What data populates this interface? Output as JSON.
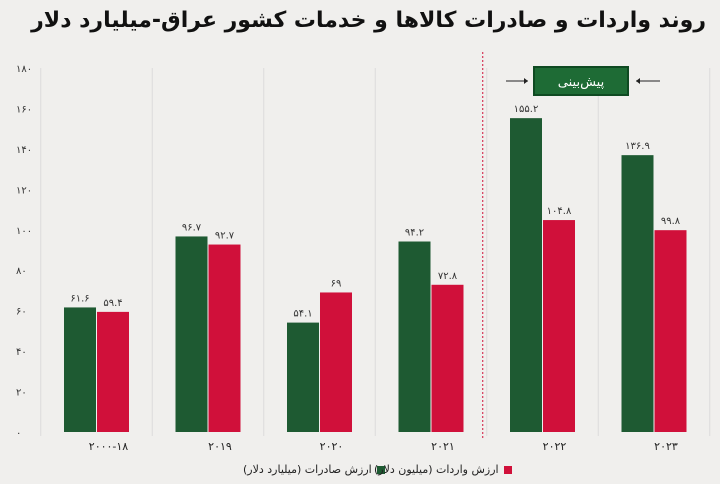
{
  "title": "روند واردات و صادرات کالاها و خدمات کشور عراق-میلیارد دلار",
  "forecast_label": "پیش‌بینی",
  "colors": {
    "exports": "#1e5a32",
    "imports": "#d0103a",
    "forecast_line": "#d0103a",
    "background": "#f0efed"
  },
  "chart_data": {
    "type": "bar",
    "categories": [
      "۲۰۰۰-۱۸",
      "۲۰۱۹",
      "۲۰۲۰",
      "۲۰۲۱",
      "۲۰۲۲",
      "۲۰۲۳"
    ],
    "series": [
      {
        "name": "ارزش صادرات (میلیارد دلار)",
        "values": [
          61.6,
          96.7,
          54.1,
          94.2,
          155.2,
          136.9
        ],
        "labels": [
          "۶۱.۶",
          "۹۶.۷",
          "۵۴.۱",
          "۹۴.۲",
          "۱۵۵.۲",
          "۱۳۶.۹"
        ]
      },
      {
        "name": "ارزش واردات (میلیون دلار)",
        "values": [
          59.4,
          92.7,
          69,
          72.8,
          104.8,
          99.8
        ],
        "labels": [
          "۵۹.۴",
          "۹۲.۷",
          "۶۹",
          "۷۲.۸",
          "۱۰۴.۸",
          "۹۹.۸"
        ]
      }
    ],
    "ylim": [
      0,
      180
    ],
    "yticks": [
      0,
      20,
      40,
      60,
      80,
      100,
      120,
      140,
      160,
      180
    ],
    "ytick_labels": [
      "۰",
      "۲۰",
      "۴۰",
      "۶۰",
      "۸۰",
      "۱۰۰",
      "۱۲۰",
      "۱۴۰",
      "۱۶۰",
      "۱۸۰"
    ],
    "grid": "vertical",
    "legend": "bottom",
    "forecast_start_category": "۲۰۲۲"
  }
}
